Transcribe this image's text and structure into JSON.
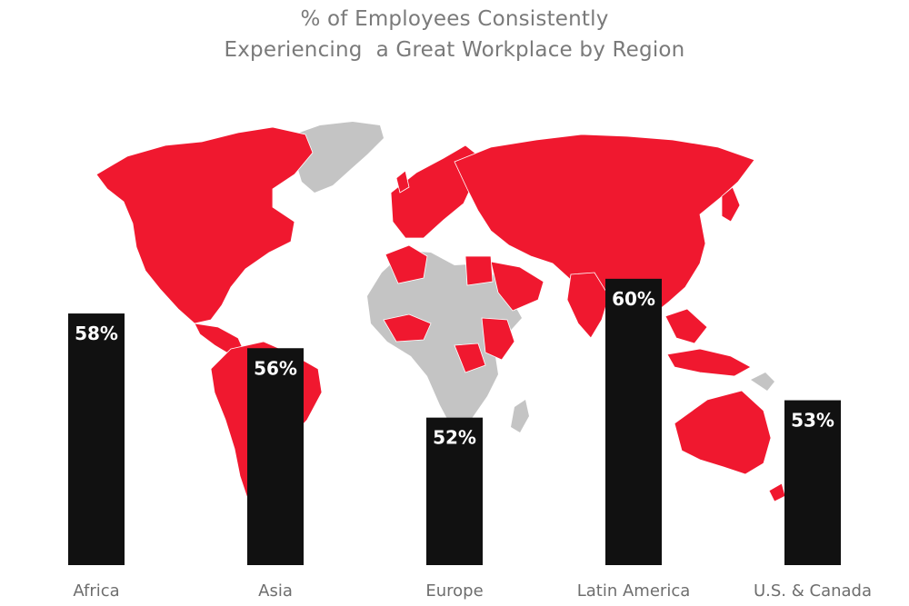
{
  "chart_data": {
    "type": "bar",
    "title_lines": [
      "% of Employees Consistently",
      "Experiencing  a Great Workplace by Region"
    ],
    "categories": [
      "Africa",
      "Asia",
      "Europe",
      "Latin America",
      "U.S. & Canada"
    ],
    "values": [
      58,
      56,
      52,
      60,
      53
    ],
    "data_labels": [
      "58%",
      "56%",
      "52%",
      "60%",
      "53%"
    ],
    "value_unit": "%",
    "xlabel": "",
    "ylabel": "",
    "grid": false,
    "legend": "none",
    "background": "world-map",
    "colors": {
      "bar": "#111111",
      "bar_label": "#ffffff",
      "map_highlight": "#f0182f",
      "map_other": "#c4c4c4",
      "title": "#7a7a7a",
      "category_label": "#6e6e6e"
    }
  }
}
